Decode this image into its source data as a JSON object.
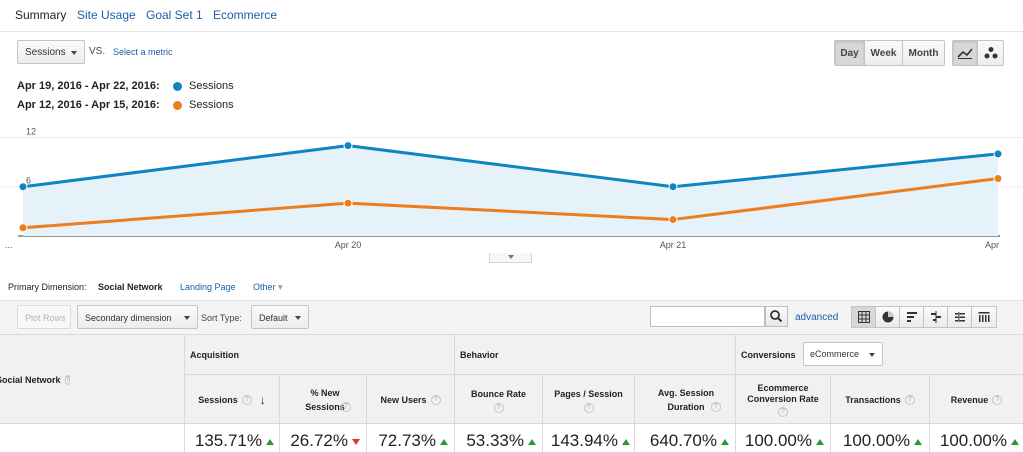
{
  "tabs": [
    "Summary",
    "Site Usage",
    "Goal Set 1",
    "Ecommerce"
  ],
  "metric": {
    "selected": "Sessions",
    "vs_label": "VS.",
    "select_metric": "Select a metric"
  },
  "granularity": [
    "Day",
    "Week",
    "Month"
  ],
  "legend": [
    {
      "range": "Apr 19, 2016 - Apr 22, 2016:",
      "name": "Sessions",
      "color": "#0f84c3"
    },
    {
      "range": "Apr 12, 2016 - Apr 15, 2016:",
      "name": "Sessions",
      "color": "#ee7d1e"
    }
  ],
  "chart_data": {
    "type": "line",
    "y_tick_labels": [
      "12",
      "6"
    ],
    "x_tick_labels": [
      "...",
      "Apr 20",
      "Apr 21",
      "Apr"
    ],
    "ylim": [
      0,
      14
    ],
    "series": [
      {
        "name": "Sessions (Apr 19, 2016 - Apr 22, 2016)",
        "color": "#0f84c3",
        "values": [
          6,
          11,
          6,
          10
        ]
      },
      {
        "name": "Sessions (Apr 12, 2016 - Apr 15, 2016)",
        "color": "#ee7d1e",
        "values": [
          1,
          4,
          2,
          7
        ]
      }
    ]
  },
  "primary_dimension": {
    "label": "Primary Dimension:",
    "active": "Social Network",
    "options": [
      "Landing Page",
      "Other"
    ]
  },
  "toolbar": {
    "plot_rows": "Plot Rows",
    "secondary_dimension": "Secondary dimension",
    "sort_type_label": "Sort Type:",
    "sort_type_value": "Default",
    "search_value": "",
    "advanced": "advanced"
  },
  "table": {
    "dim_header": "Social Network",
    "groups": {
      "acquisition": "Acquisition",
      "behavior": "Behavior",
      "conversions": "Conversions"
    },
    "conversions_select": "eCommerce",
    "columns": {
      "sessions": "Sessions",
      "pct_new_sessions": "% New Sessions",
      "new_users": "New Users",
      "bounce_rate": "Bounce Rate",
      "pages_session": "Pages / Session",
      "avg_session_duration": "Avg. Session Duration",
      "ecom_conv_rate": "Ecommerce Conversion Rate",
      "transactions": "Transactions",
      "revenue": "Revenue"
    },
    "totals": {
      "sessions": "135.71%",
      "pct_new_sessions": "26.72%",
      "new_users": "72.73%",
      "bounce_rate": "53.33%",
      "pages_session": "143.94%",
      "avg_session_duration": "640.70%",
      "ecom_conv_rate": "100.00%",
      "transactions": "100.00%",
      "revenue": "100.00%"
    }
  }
}
